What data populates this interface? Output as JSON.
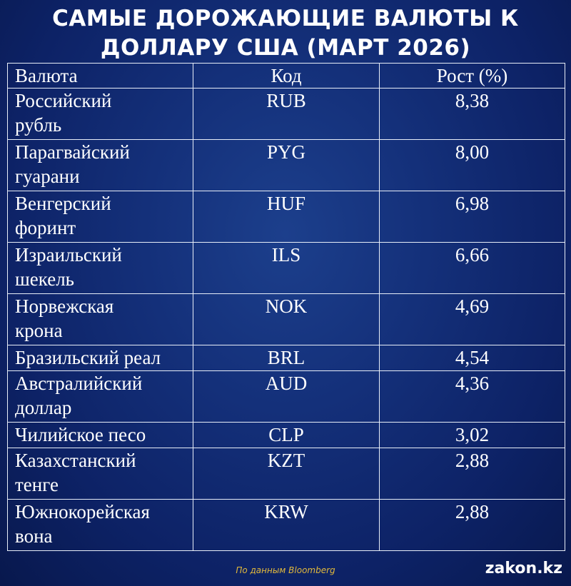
{
  "title": "САМЫЕ ДОРОЖАЮЩИЕ ВАЛЮТЫ К ДОЛЛАРУ США (МАРТ 2026)",
  "chart_data": {
    "type": "table",
    "title": "САМЫЕ ДОРОЖАЮЩИЕ ВАЛЮТЫ К ДОЛЛАРУ США (МАРТ 2026)",
    "columns": [
      "Валюта",
      "Код",
      "Рост (%)"
    ],
    "rows": [
      {
        "name_lines": [
          "Российский",
          "рубль"
        ],
        "code": "RUB",
        "value": "8,38"
      },
      {
        "name_lines": [
          "Парагвайский",
          "гуарани"
        ],
        "code": "PYG",
        "value": "8,00"
      },
      {
        "name_lines": [
          "Венгерский",
          "форинт"
        ],
        "code": "HUF",
        "value": "6,98"
      },
      {
        "name_lines": [
          "Израильский",
          "шекель"
        ],
        "code": "ILS",
        "value": "6,66"
      },
      {
        "name_lines": [
          "Норвежская",
          "крона"
        ],
        "code": "NOK",
        "value": "4,69"
      },
      {
        "name_lines": [
          "Бразильский реал"
        ],
        "code": "BRL",
        "value": "4,54"
      },
      {
        "name_lines": [
          "Австралийский",
          "доллар"
        ],
        "code": "AUD",
        "value": "4,36"
      },
      {
        "name_lines": [
          "Чилийское песо"
        ],
        "code": "CLP",
        "value": "3,02"
      },
      {
        "name_lines": [
          "Казахстанский",
          "тенге"
        ],
        "code": "KZT",
        "value": "2,88"
      },
      {
        "name_lines": [
          "Южнокорейская",
          "вона"
        ],
        "code": "KRW",
        "value": "2,88"
      }
    ]
  },
  "footer": {
    "source": "По данным Bloomberg",
    "brand": "zakon.kz"
  },
  "colors": {
    "background": "#14307a",
    "text": "#ffffff",
    "source_text": "#e2b93b",
    "grid": "#e8eef8"
  }
}
